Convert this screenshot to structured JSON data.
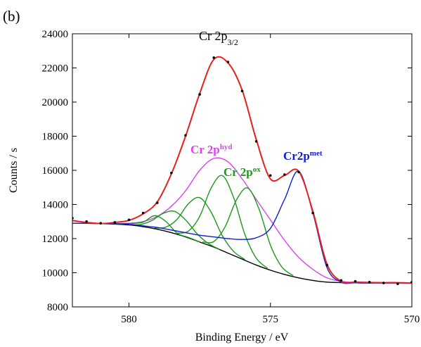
{
  "chart_data": {
    "type": "line",
    "panel": "(b)",
    "title": {
      "text": "Cr 2p",
      "sub": "3/2"
    },
    "x_label": "Binding Energy / eV",
    "y_label": "Counts / s",
    "xlim": [
      582,
      570
    ],
    "xticks": [
      580,
      575,
      570
    ],
    "ylim": [
      8000,
      24000
    ],
    "yticks": [
      8000,
      10000,
      12000,
      14000,
      16000,
      18000,
      20000,
      22000,
      24000
    ],
    "x": [
      582,
      581.5,
      581,
      580.5,
      580,
      579.5,
      579,
      578.5,
      578,
      577.5,
      577,
      576.5,
      576,
      575.5,
      575,
      574.5,
      574,
      573.5,
      573,
      572.5,
      572,
      571.5,
      571,
      570.5,
      570
    ],
    "annotations": [
      {
        "text": "Cr 2p",
        "sup": "hyd",
        "color": "#dd44ee"
      },
      {
        "text": "Cr 2p",
        "sup": "ox",
        "color": "#1a9a1a"
      },
      {
        "text": "Cr2p",
        "sup": "met",
        "color": "#1020d0"
      }
    ],
    "series": [
      {
        "color": "#000000",
        "values": [
          12900,
          12900,
          12880,
          12850,
          12800,
          12700,
          12550,
          12350,
          12100,
          11800,
          11500,
          11150,
          10800,
          10450,
          10150,
          9900,
          9700,
          9550,
          9450,
          9420,
          9410,
          9400,
          9400,
          9400,
          9400
        ]
      },
      {
        "color": "#dd44ee",
        "values": [
          12900,
          12900,
          12880,
          12880,
          12900,
          13000,
          13300,
          13900,
          14800,
          16000,
          16700,
          16500,
          15500,
          14300,
          13100,
          11900,
          10900,
          10200,
          9700,
          9500,
          9420,
          9410,
          9400,
          9400,
          9400
        ]
      },
      {
        "color": "#1a9a1a",
        "x": [
          578.3,
          577.9,
          577.5,
          577.1,
          576.7,
          576.3,
          575.9,
          575.5,
          575.1
        ],
        "values": [
          12310,
          12440,
          13300,
          14950,
          15690,
          14400,
          12230,
          10850,
          10260
        ]
      },
      {
        "color": "#1a9a1a",
        "x": [
          577.4,
          577.0,
          576.6,
          576.2,
          575.8,
          575.4,
          575.0,
          574.6,
          574.2
        ],
        "values": [
          11800,
          11830,
          12700,
          14270,
          14960,
          13720,
          11620,
          10350,
          9830
        ]
      },
      {
        "color": "#1a9a1a",
        "x": [
          579.1,
          578.7,
          578.3,
          577.9,
          577.5,
          577.1,
          576.7,
          576.3,
          575.9
        ],
        "values": [
          12620,
          12670,
          13130,
          14040,
          14400,
          13560,
          12170,
          11250,
          10770
        ]
      },
      {
        "color": "#1a9a1a",
        "x": [
          580.0,
          579.6,
          579.2,
          578.8,
          578.4,
          578.0,
          577.6,
          577.2,
          576.8
        ],
        "values": [
          12820,
          12820,
          13050,
          13470,
          13600,
          13100,
          12300,
          11720,
          11370
        ]
      },
      {
        "color": "#1a9a1a",
        "x": [
          580.7,
          580.3,
          579.9,
          579.5,
          579.1,
          578.7,
          578.3,
          577.9,
          577.5
        ],
        "values": [
          12880,
          12860,
          12890,
          12960,
          13340,
          13010,
          12320,
          12070,
          11810
        ]
      },
      {
        "color": "#1020d0",
        "values": [
          12900,
          12900,
          12880,
          12870,
          12850,
          12750,
          12650,
          12500,
          12350,
          12200,
          12100,
          12000,
          11950,
          12050,
          12600,
          14300,
          15950,
          13500,
          10300,
          9450,
          9410,
          9400,
          9400,
          9400,
          9400
        ]
      },
      {
        "color": "#e8201e",
        "values": [
          13060,
          12950,
          12880,
          12950,
          13070,
          13450,
          14150,
          15800,
          18000,
          20500,
          22500,
          22300,
          20700,
          17800,
          15500,
          15700,
          15950,
          13600,
          10500,
          9500,
          9450,
          9430,
          9420,
          9420,
          9400
        ]
      },
      {
        "color": "#000000",
        "marker": "dot",
        "values": [
          13200,
          13000,
          12900,
          12950,
          13100,
          13500,
          14100,
          15850,
          18050,
          20450,
          22600,
          22350,
          20650,
          17700,
          15700,
          15750,
          15900,
          13500,
          10450,
          9550,
          9500,
          9450,
          9400,
          9350,
          9450
        ]
      }
    ]
  }
}
